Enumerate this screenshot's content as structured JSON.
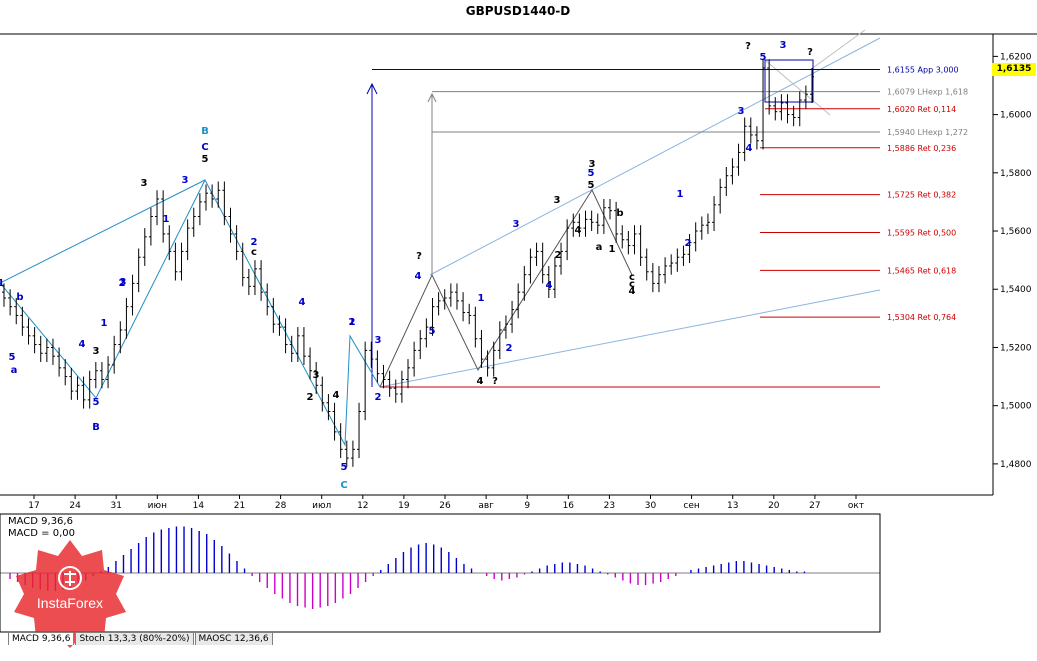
{
  "chart_data": {
    "type": "candlestick",
    "title": "GBPUSD1440-D",
    "ylim": [
      1.47,
      1.627
    ],
    "yticks": [
      "1,6200",
      "1,6000",
      "1,5800",
      "1,5600",
      "1,5400",
      "1,5200",
      "1,5000",
      "1,4800"
    ],
    "ytick_values": [
      1.62,
      1.6,
      1.58,
      1.56,
      1.54,
      1.52,
      1.5,
      1.48
    ],
    "xticks": [
      "17",
      "24",
      "31",
      "июн",
      "14",
      "21",
      "28",
      "июл",
      "12",
      "19",
      "26",
      "авг",
      "9",
      "16",
      "23",
      "30",
      "сен",
      "13",
      "20",
      "27",
      "окт"
    ],
    "current_price": "1,6135",
    "levels": [
      {
        "label": "1,6155 App 3,000",
        "value": 1.6155,
        "color": "#0000aa"
      },
      {
        "label": "1,6079 LНexp 1,618",
        "value": 1.6079,
        "color": "#808080"
      },
      {
        "label": "1,6020 Ret 0,114",
        "value": 1.602,
        "color": "#cc0000"
      },
      {
        "label": "1,5940 LНexp 1,272",
        "value": 1.594,
        "color": "#808080"
      },
      {
        "label": "1,5886 Ret 0,236",
        "value": 1.5886,
        "color": "#cc0000"
      },
      {
        "label": "1,5725 Ret 0,382",
        "value": 1.5725,
        "color": "#cc0000"
      },
      {
        "label": "1,5595 Ret 0,500",
        "value": 1.5595,
        "color": "#cc0000"
      },
      {
        "label": "1,5465 Ret 0,618",
        "value": 1.5465,
        "color": "#cc0000"
      },
      {
        "label": "1,5304 Ret 0,764",
        "value": 1.5304,
        "color": "#cc0000"
      }
    ],
    "closes": [
      1.537,
      1.534,
      1.531,
      1.527,
      1.524,
      1.521,
      1.518,
      1.52,
      1.517,
      1.513,
      1.51,
      1.505,
      1.507,
      1.502,
      1.509,
      1.512,
      1.509,
      1.514,
      1.521,
      1.526,
      1.534,
      1.542,
      1.551,
      1.558,
      1.565,
      1.571,
      1.559,
      1.553,
      1.546,
      1.553,
      1.561,
      1.565,
      1.57,
      1.573,
      1.571,
      1.574,
      1.565,
      1.559,
      1.553,
      1.544,
      1.541,
      1.547,
      1.539,
      1.534,
      1.528,
      1.527,
      1.521,
      1.518,
      1.524,
      1.517,
      1.512,
      1.507,
      1.501,
      1.498,
      1.491,
      1.485,
      1.482,
      1.485,
      1.498,
      1.519,
      1.516,
      1.511,
      1.509,
      1.506,
      1.504,
      1.509,
      1.513,
      1.519,
      1.523,
      1.527,
      1.534,
      1.536,
      1.537,
      1.539,
      1.536,
      1.532,
      1.531,
      1.523,
      1.516,
      1.513,
      1.519,
      1.526,
      1.528,
      1.533,
      1.539,
      1.545,
      1.551,
      1.553,
      1.545,
      1.54,
      1.548,
      1.553,
      1.561,
      1.563,
      1.561,
      1.564,
      1.563,
      1.562,
      1.568,
      1.567,
      1.559,
      1.557,
      1.555,
      1.559,
      1.551,
      1.546,
      1.542,
      1.545,
      1.548,
      1.549,
      1.551,
      1.552,
      1.556,
      1.56,
      1.562,
      1.563,
      1.569,
      1.575,
      1.579,
      1.582,
      1.587,
      1.596,
      1.593,
      1.591,
      1.616,
      1.603,
      1.601,
      1.604,
      1.6,
      1.599,
      1.605,
      1.607,
      1.613
    ],
    "macd": {
      "label1": "MACD 9,36,6",
      "label2": "MACD = 0,00",
      "values": [
        -0.004,
        -0.006,
        -0.008,
        -0.01,
        -0.011,
        -0.012,
        -0.012,
        -0.011,
        -0.01,
        -0.008,
        -0.005,
        -0.002,
        0.001,
        0.004,
        0.008,
        0.012,
        0.016,
        0.02,
        0.024,
        0.027,
        0.029,
        0.03,
        0.031,
        0.031,
        0.03,
        0.028,
        0.026,
        0.022,
        0.018,
        0.013,
        0.008,
        0.003,
        -0.002,
        -0.006,
        -0.01,
        -0.014,
        -0.017,
        -0.02,
        -0.022,
        -0.023,
        -0.024,
        -0.023,
        -0.022,
        -0.02,
        -0.017,
        -0.014,
        -0.01,
        -0.006,
        -0.002,
        0.002,
        0.006,
        0.01,
        0.014,
        0.017,
        0.019,
        0.02,
        0.019,
        0.017,
        0.014,
        0.01,
        0.006,
        0.003,
        0.0,
        -0.002,
        -0.004,
        -0.005,
        -0.004,
        -0.003,
        -0.001,
        0.001,
        0.003,
        0.005,
        0.006,
        0.007,
        0.007,
        0.006,
        0.005,
        0.003,
        0.001,
        -0.001,
        -0.003,
        -0.005,
        -0.007,
        -0.008,
        -0.008,
        -0.007,
        -0.006,
        -0.004,
        -0.002,
        0.0,
        0.002,
        0.003,
        0.004,
        0.005,
        0.006,
        0.007,
        0.008,
        0.008,
        0.007,
        0.006,
        0.005,
        0.004,
        0.003,
        0.002,
        0.001,
        0.001,
        0.0
      ]
    },
    "wave_labels": [
      "B",
      "C",
      "5",
      "3",
      "3",
      "b",
      "1",
      "2",
      "4",
      "3",
      "a",
      "c",
      "2",
      "4",
      "1",
      "3",
      "5",
      "5",
      "1",
      "2",
      "3",
      "4",
      "5",
      "c",
      "B",
      "1",
      "2",
      "3",
      "4",
      "5",
      "C",
      "1",
      "2",
      "3",
      "4",
      "5",
      "?",
      "2",
      "?",
      "1",
      "2",
      "3",
      "4",
      "5",
      "a",
      "b",
      "c",
      "4",
      "1",
      "2",
      "3",
      "4",
      "5",
      "?",
      "3",
      "?",
      "3",
      "4"
    ]
  },
  "tabs": [
    "MACD 9,36,6",
    "Stoch 13,3,3 (80%-20%)",
    "MAOSC 12,36,6"
  ],
  "brand": "InstaForex",
  "colors": {
    "bull": "#000000",
    "wave_blue": "#0000cc",
    "wave_lightblue": "#1e90c8",
    "ret_red": "#cc0000",
    "macd_pos": "#0000cc",
    "macd_neg": "#cc00cc"
  }
}
